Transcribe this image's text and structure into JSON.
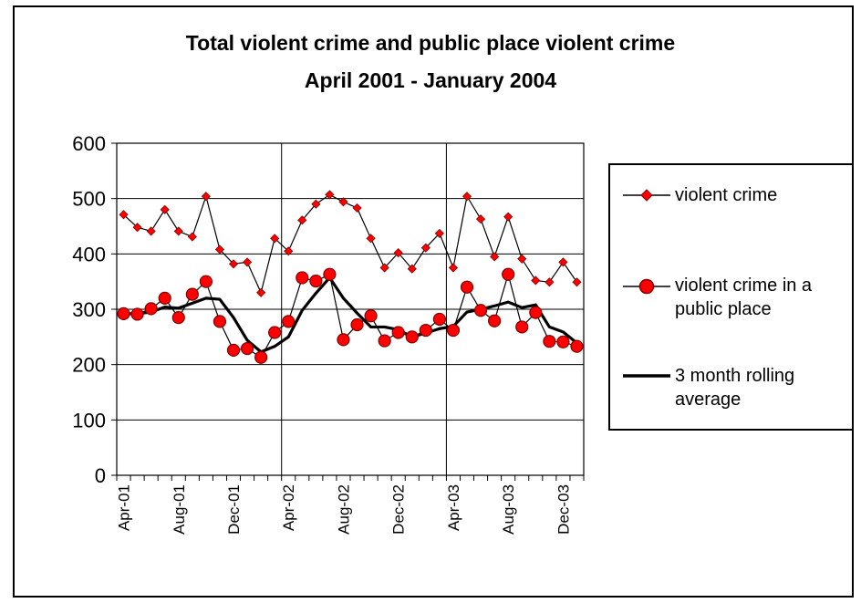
{
  "chart_data": {
    "type": "line",
    "title": [
      "Total violent crime and public place violent crime",
      "April 2001 - January 2004"
    ],
    "xlabel": "",
    "ylabel": "",
    "ylim": [
      0,
      600
    ],
    "y_ticks": [
      "0",
      "100",
      "200",
      "300",
      "400",
      "500",
      "600"
    ],
    "x_tick_labels": [
      "Apr-01",
      "Aug-01",
      "Dec-01",
      "Apr-02",
      "Aug-02",
      "Dec-02",
      "Apr-03",
      "Aug-03",
      "Dec-03"
    ],
    "x": [
      "Apr-01",
      "May-01",
      "Jun-01",
      "Jul-01",
      "Aug-01",
      "Sep-01",
      "Oct-01",
      "Nov-01",
      "Dec-01",
      "Jan-02",
      "Feb-02",
      "Mar-02",
      "Apr-02",
      "May-02",
      "Jun-02",
      "Jul-02",
      "Aug-02",
      "Sep-02",
      "Oct-02",
      "Nov-02",
      "Dec-02",
      "Jan-03",
      "Feb-03",
      "Mar-03",
      "Apr-03",
      "May-03",
      "Jun-03",
      "Jul-03",
      "Aug-03",
      "Sep-03",
      "Oct-03",
      "Nov-03",
      "Dec-03",
      "Jan-04"
    ],
    "grid": "horizontal and year vertical lines",
    "legend_position": "right",
    "series": [
      {
        "name": "violent crime",
        "marker": "diamond",
        "color": "#ff0000",
        "line_color": "#000000",
        "values": [
          471,
          448,
          441,
          480,
          441,
          431,
          504,
          408,
          382,
          385,
          330,
          428,
          405,
          461,
          490,
          507,
          494,
          483,
          428,
          375,
          402,
          373,
          411,
          437,
          375,
          504,
          463,
          395,
          467,
          391,
          352,
          349,
          385,
          349
        ]
      },
      {
        "name": "violent crime in a public place",
        "marker": "circle",
        "color": "#ff0000",
        "line_color": "#000000",
        "values": [
          292,
          291,
          301,
          320,
          285,
          327,
          350,
          278,
          226,
          229,
          213,
          258,
          278,
          357,
          351,
          363,
          245,
          272,
          288,
          243,
          258,
          250,
          262,
          282,
          262,
          340,
          298,
          279,
          363,
          268,
          294,
          242,
          241,
          233
        ]
      },
      {
        "name": "3 month rolling average",
        "marker": "none",
        "color": "#000000",
        "values": [
          292,
          292,
          295,
          304,
          302,
          311,
          320,
          318,
          285,
          244,
          223,
          233,
          250,
          298,
          329,
          357,
          320,
          293,
          268,
          268,
          263,
          250,
          257,
          265,
          269,
          295,
          300,
          306,
          313,
          303,
          308,
          268,
          259,
          239
        ]
      }
    ]
  }
}
